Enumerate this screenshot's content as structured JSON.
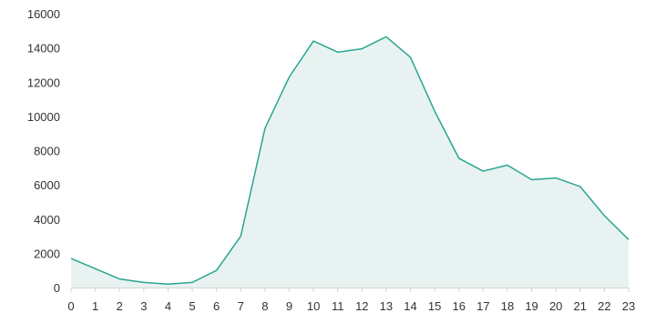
{
  "chart_data": {
    "type": "area",
    "x": [
      0,
      1,
      2,
      3,
      4,
      5,
      6,
      7,
      8,
      9,
      10,
      11,
      12,
      13,
      14,
      15,
      16,
      17,
      18,
      19,
      20,
      21,
      22,
      23
    ],
    "series": [
      {
        "values": [
          1700,
          1100,
          500,
          300,
          200,
          300,
          1000,
          3000,
          9300,
          12300,
          14400,
          13750,
          13950,
          14650,
          13450,
          10300,
          7550,
          6800,
          7150,
          6300,
          6400,
          5900,
          4200,
          2800
        ]
      }
    ],
    "x_tick_labels": [
      "0",
      "1",
      "2",
      "3",
      "4",
      "5",
      "6",
      "7",
      "8",
      "9",
      "10",
      "11",
      "12",
      "13",
      "14",
      "15",
      "16",
      "17",
      "18",
      "19",
      "20",
      "21",
      "22",
      "23"
    ],
    "y_tick_labels": [
      "0",
      "2000",
      "4000",
      "6000",
      "8000",
      "10000",
      "12000",
      "14000",
      "16000"
    ],
    "y_ticks": [
      0,
      2000,
      4000,
      6000,
      8000,
      10000,
      12000,
      14000,
      16000
    ],
    "ylim": [
      0,
      16000
    ],
    "title": "",
    "xlabel": "",
    "ylabel": "",
    "grid": false,
    "line_color": "#2aa58f",
    "fill_color": "#e8f3f1",
    "axis_color": "#d4d4d4"
  }
}
